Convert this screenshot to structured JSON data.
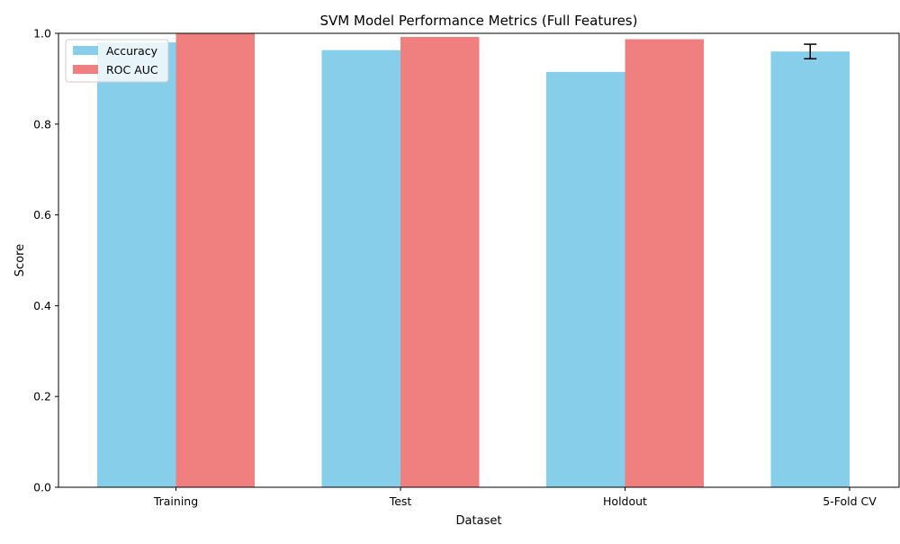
{
  "chart_data": {
    "type": "bar",
    "title": "SVM Model Performance Metrics (Full Features)",
    "xlabel": "Dataset",
    "ylabel": "Score",
    "categories": [
      "Training",
      "Test",
      "Holdout",
      "5-Fold CV"
    ],
    "series": [
      {
        "name": "Accuracy",
        "color": "#87CEEB",
        "values": [
          0.98,
          0.963,
          0.915,
          0.96
        ]
      },
      {
        "name": "ROC AUC",
        "color": "#F08080",
        "values": [
          1.0,
          0.992,
          0.987,
          null
        ]
      }
    ],
    "error_bars": [
      {
        "series": "Accuracy",
        "category": "5-Fold CV",
        "value": 0.96,
        "error": 0.016
      }
    ],
    "ylim": [
      0,
      1.0
    ],
    "yticks": [
      "0.0",
      "0.2",
      "0.4",
      "0.6",
      "0.8",
      "1.0"
    ],
    "grid": false,
    "legend_position": "top-left"
  }
}
